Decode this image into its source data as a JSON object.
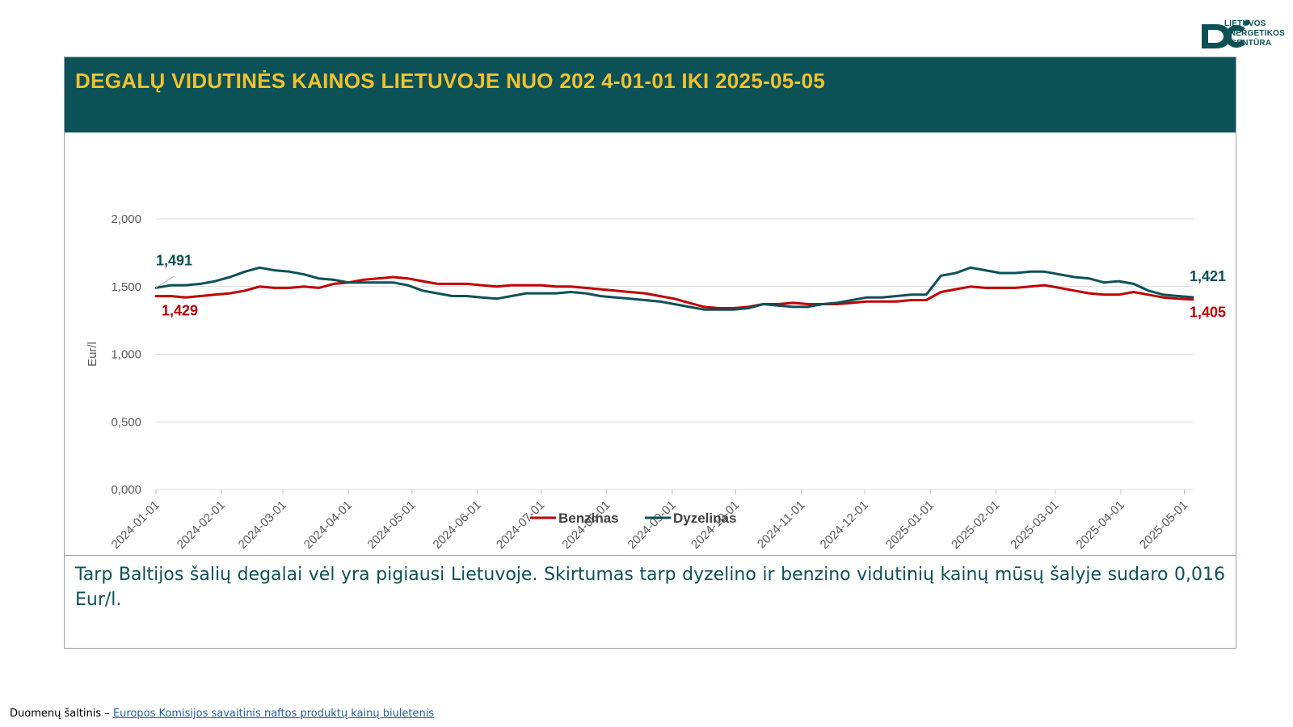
{
  "logo": {
    "lines": [
      "LIETUVOS",
      "ENERGETIKOS",
      "AGENTŪRA"
    ]
  },
  "header": {
    "title": "DEGALŲ VIDUTINĖS KAINOS LIETUVOJE NUO 202 4-01-01 IKI 2025-05-05"
  },
  "note": {
    "text": "Tarp Baltijos šalių degalai vėl yra pigiausi Lietuvoje. Skirtumas tarp dyzelino ir benzino vidutinių kainų mūsų šalyje sudaro 0,016 Eur/l."
  },
  "source": {
    "prefix": "Duomenų šaltinis – ",
    "link_text": "Europos Komisijos savaitinis naftos produktų kainų biuletenis "
  },
  "colors": {
    "header_bg": "#0c5156",
    "title": "#f2c12e",
    "benzinas": "#c00000",
    "dyzelinas": "#0c5156"
  },
  "chart_data": {
    "type": "line",
    "title": "DEGALŲ VIDUTINĖS KAINOS LIETUVOJE NUO 202 4-01-01 IKI 2025-05-05",
    "xlabel": "",
    "ylabel": "Eur/l",
    "ylim": [
      0,
      2
    ],
    "yticks": [
      0,
      0.5,
      1,
      1.5,
      2
    ],
    "ytick_labels": [
      "0,000",
      "0,500",
      "1,000",
      "1,500",
      "2,000"
    ],
    "x_range": [
      "2024-01-01",
      "2025-05-05"
    ],
    "xticks": [
      "2024-01-01",
      "2024-02-01",
      "2024-03-01",
      "2024-04-01",
      "2024-05-01",
      "2024-06-01",
      "2024-07-01",
      "2024-08-01",
      "2024-09-01",
      "2024-10-01",
      "2024-11-01",
      "2024-12-01",
      "2025-01-01",
      "2025-02-01",
      "2025-03-01",
      "2025-04-01",
      "2025-05-01"
    ],
    "grid": true,
    "legend": "bottom",
    "series": [
      {
        "name": "Benzinas",
        "color": "#c00000",
        "points": [
          [
            "2024-01-01",
            1.429
          ],
          [
            "2024-01-08",
            1.43
          ],
          [
            "2024-01-15",
            1.42
          ],
          [
            "2024-01-22",
            1.43
          ],
          [
            "2024-01-29",
            1.44
          ],
          [
            "2024-02-05",
            1.45
          ],
          [
            "2024-02-12",
            1.47
          ],
          [
            "2024-02-19",
            1.5
          ],
          [
            "2024-02-26",
            1.49
          ],
          [
            "2024-03-04",
            1.49
          ],
          [
            "2024-03-11",
            1.5
          ],
          [
            "2024-03-18",
            1.49
          ],
          [
            "2024-03-25",
            1.52
          ],
          [
            "2024-04-01",
            1.53
          ],
          [
            "2024-04-08",
            1.55
          ],
          [
            "2024-04-15",
            1.56
          ],
          [
            "2024-04-22",
            1.57
          ],
          [
            "2024-04-29",
            1.56
          ],
          [
            "2024-05-06",
            1.54
          ],
          [
            "2024-05-13",
            1.52
          ],
          [
            "2024-05-20",
            1.52
          ],
          [
            "2024-05-27",
            1.52
          ],
          [
            "2024-06-03",
            1.51
          ],
          [
            "2024-06-10",
            1.5
          ],
          [
            "2024-06-17",
            1.51
          ],
          [
            "2024-06-24",
            1.51
          ],
          [
            "2024-07-01",
            1.51
          ],
          [
            "2024-07-08",
            1.5
          ],
          [
            "2024-07-15",
            1.5
          ],
          [
            "2024-07-22",
            1.49
          ],
          [
            "2024-07-29",
            1.48
          ],
          [
            "2024-08-05",
            1.47
          ],
          [
            "2024-08-12",
            1.46
          ],
          [
            "2024-08-19",
            1.45
          ],
          [
            "2024-08-26",
            1.43
          ],
          [
            "2024-09-02",
            1.41
          ],
          [
            "2024-09-09",
            1.38
          ],
          [
            "2024-09-16",
            1.35
          ],
          [
            "2024-09-23",
            1.34
          ],
          [
            "2024-09-30",
            1.34
          ],
          [
            "2024-10-07",
            1.35
          ],
          [
            "2024-10-14",
            1.37
          ],
          [
            "2024-10-21",
            1.37
          ],
          [
            "2024-10-28",
            1.38
          ],
          [
            "2024-11-04",
            1.37
          ],
          [
            "2024-11-11",
            1.37
          ],
          [
            "2024-11-18",
            1.37
          ],
          [
            "2024-11-25",
            1.38
          ],
          [
            "2024-12-02",
            1.39
          ],
          [
            "2024-12-09",
            1.39
          ],
          [
            "2024-12-16",
            1.39
          ],
          [
            "2024-12-23",
            1.4
          ],
          [
            "2024-12-30",
            1.4
          ],
          [
            "2025-01-06",
            1.46
          ],
          [
            "2025-01-13",
            1.48
          ],
          [
            "2025-01-20",
            1.5
          ],
          [
            "2025-01-27",
            1.49
          ],
          [
            "2025-02-03",
            1.49
          ],
          [
            "2025-02-10",
            1.49
          ],
          [
            "2025-02-17",
            1.5
          ],
          [
            "2025-02-24",
            1.51
          ],
          [
            "2025-03-03",
            1.49
          ],
          [
            "2025-03-10",
            1.47
          ],
          [
            "2025-03-17",
            1.45
          ],
          [
            "2025-03-24",
            1.44
          ],
          [
            "2025-03-31",
            1.44
          ],
          [
            "2025-04-07",
            1.46
          ],
          [
            "2025-04-14",
            1.44
          ],
          [
            "2025-04-21",
            1.42
          ],
          [
            "2025-04-28",
            1.41
          ],
          [
            "2025-05-05",
            1.405
          ]
        ],
        "labels": [
          {
            "date": "2024-01-01",
            "text": "1,429"
          },
          {
            "date": "2025-05-05",
            "text": "1,405"
          }
        ]
      },
      {
        "name": "Dyzelinas",
        "color": "#0c5156",
        "points": [
          [
            "2024-01-01",
            1.491
          ],
          [
            "2024-01-08",
            1.51
          ],
          [
            "2024-01-15",
            1.51
          ],
          [
            "2024-01-22",
            1.52
          ],
          [
            "2024-01-29",
            1.54
          ],
          [
            "2024-02-05",
            1.57
          ],
          [
            "2024-02-12",
            1.61
          ],
          [
            "2024-02-19",
            1.64
          ],
          [
            "2024-02-26",
            1.62
          ],
          [
            "2024-03-04",
            1.61
          ],
          [
            "2024-03-11",
            1.59
          ],
          [
            "2024-03-18",
            1.56
          ],
          [
            "2024-03-25",
            1.55
          ],
          [
            "2024-04-01",
            1.53
          ],
          [
            "2024-04-08",
            1.53
          ],
          [
            "2024-04-15",
            1.53
          ],
          [
            "2024-04-22",
            1.53
          ],
          [
            "2024-04-29",
            1.51
          ],
          [
            "2024-05-06",
            1.47
          ],
          [
            "2024-05-13",
            1.45
          ],
          [
            "2024-05-20",
            1.43
          ],
          [
            "2024-05-27",
            1.43
          ],
          [
            "2024-06-03",
            1.42
          ],
          [
            "2024-06-10",
            1.41
          ],
          [
            "2024-06-17",
            1.43
          ],
          [
            "2024-06-24",
            1.45
          ],
          [
            "2024-07-01",
            1.45
          ],
          [
            "2024-07-08",
            1.45
          ],
          [
            "2024-07-15",
            1.46
          ],
          [
            "2024-07-22",
            1.45
          ],
          [
            "2024-07-29",
            1.43
          ],
          [
            "2024-08-05",
            1.42
          ],
          [
            "2024-08-12",
            1.41
          ],
          [
            "2024-08-19",
            1.4
          ],
          [
            "2024-08-26",
            1.39
          ],
          [
            "2024-09-02",
            1.37
          ],
          [
            "2024-09-09",
            1.35
          ],
          [
            "2024-09-16",
            1.33
          ],
          [
            "2024-09-23",
            1.33
          ],
          [
            "2024-09-30",
            1.33
          ],
          [
            "2024-10-07",
            1.34
          ],
          [
            "2024-10-14",
            1.37
          ],
          [
            "2024-10-21",
            1.36
          ],
          [
            "2024-10-28",
            1.35
          ],
          [
            "2024-11-04",
            1.35
          ],
          [
            "2024-11-11",
            1.37
          ],
          [
            "2024-11-18",
            1.38
          ],
          [
            "2024-11-25",
            1.4
          ],
          [
            "2024-12-02",
            1.42
          ],
          [
            "2024-12-09",
            1.42
          ],
          [
            "2024-12-16",
            1.43
          ],
          [
            "2024-12-23",
            1.44
          ],
          [
            "2024-12-30",
            1.44
          ],
          [
            "2025-01-06",
            1.58
          ],
          [
            "2025-01-13",
            1.6
          ],
          [
            "2025-01-20",
            1.64
          ],
          [
            "2025-01-27",
            1.62
          ],
          [
            "2025-02-03",
            1.6
          ],
          [
            "2025-02-10",
            1.6
          ],
          [
            "2025-02-17",
            1.61
          ],
          [
            "2025-02-24",
            1.61
          ],
          [
            "2025-03-03",
            1.59
          ],
          [
            "2025-03-10",
            1.57
          ],
          [
            "2025-03-17",
            1.56
          ],
          [
            "2025-03-24",
            1.53
          ],
          [
            "2025-03-31",
            1.54
          ],
          [
            "2025-04-07",
            1.52
          ],
          [
            "2025-04-14",
            1.47
          ],
          [
            "2025-04-21",
            1.44
          ],
          [
            "2025-04-28",
            1.43
          ],
          [
            "2025-05-05",
            1.421
          ]
        ],
        "labels": [
          {
            "date": "2024-01-01",
            "text": "1,491"
          },
          {
            "date": "2025-05-05",
            "text": "1,421"
          }
        ]
      }
    ]
  }
}
